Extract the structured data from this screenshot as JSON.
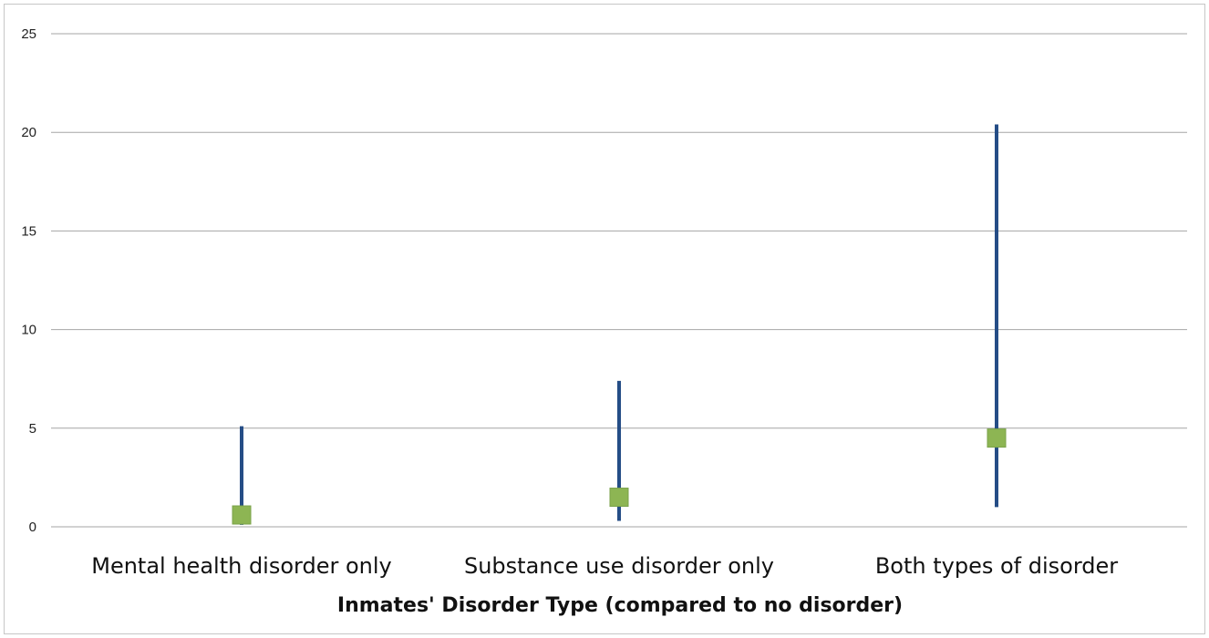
{
  "chart_data": {
    "type": "scatter",
    "title": "",
    "xlabel": "Inmates' Disorder Type (compared to no disorder)",
    "ylabel": "",
    "categories": [
      "Mental health disorder only",
      "Substance use disorder only",
      "Both types of disorder"
    ],
    "ylim": [
      0,
      25
    ],
    "yticks": [
      0,
      5,
      10,
      15,
      20,
      25
    ],
    "grid": true,
    "estimates": [
      0.6,
      1.5,
      4.5
    ],
    "ci_lower": [
      0.1,
      0.3,
      1.0
    ],
    "ci_upper": [
      5.1,
      7.4,
      20.4
    ],
    "colors": {
      "marker": "#8db553",
      "whisker": "#254d86",
      "grid": "#a6a6a6"
    }
  }
}
